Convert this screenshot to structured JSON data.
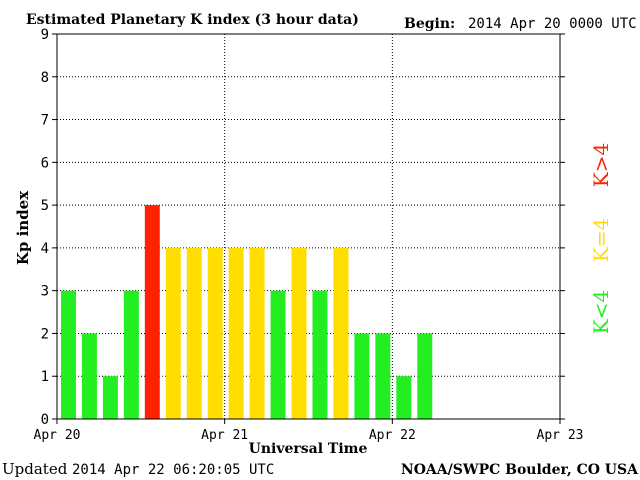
{
  "chart_data": {
    "type": "bar",
    "title": "Estimated Planetary K index (3 hour data)",
    "begin_label": "Begin:",
    "begin_value": "2014 Apr 20 0000 UTC",
    "xlabel": "Universal Time",
    "ylabel": "Kp index",
    "ylim": [
      0,
      9
    ],
    "yticks": [
      "0",
      "1",
      "2",
      "3",
      "4",
      "5",
      "6",
      "7",
      "8",
      "9"
    ],
    "xticks": [
      "Apr 20",
      "Apr 21",
      "Apr 22",
      "Apr 23"
    ],
    "bars_per_day": 8,
    "days": 3,
    "values": [
      3,
      2,
      1,
      3,
      5,
      4,
      4,
      4,
      4,
      4,
      3,
      4,
      3,
      4,
      2,
      2,
      1,
      2
    ],
    "grid": true,
    "legend_placement": "right",
    "legend": [
      {
        "label": "K<4",
        "color": "#22ee22"
      },
      {
        "label": "K=4",
        "color": "#ffdd00"
      },
      {
        "label": "K>4",
        "color": "#ff2200"
      }
    ]
  },
  "footer": {
    "updated_label": "Updated",
    "updated_value": "2014 Apr 22 06:20:05 UTC",
    "credit": "NOAA/SWPC Boulder, CO USA"
  },
  "colors": {
    "low": "#22ee22",
    "mid": "#ffdd00",
    "high": "#ff2200"
  }
}
